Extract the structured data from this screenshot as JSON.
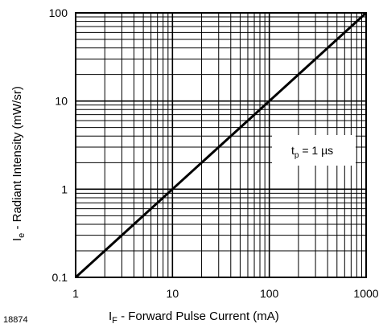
{
  "figure_number": "18874",
  "chart_data": {
    "type": "line",
    "x_scale": "log",
    "y_scale": "log",
    "xlim": [
      1,
      1000
    ],
    "ylim": [
      0.1,
      100
    ],
    "grid": true,
    "x_ticks": [
      "1",
      "10",
      "100",
      "1000"
    ],
    "y_ticks": [
      "0.1",
      "1",
      "10",
      "100"
    ],
    "x_tick_values": [
      1,
      10,
      100,
      1000
    ],
    "y_tick_values": [
      0.1,
      1,
      10,
      100
    ],
    "xlabel": {
      "main": "I",
      "sub": "F",
      "rest": " - Forward Pulse Current (mA)"
    },
    "ylabel": {
      "main": "I",
      "sub": "e",
      "rest": " - Radiant Intensity (mW/sr)"
    },
    "annotation": {
      "main": "t",
      "sub": "p",
      "rest": " = 1 µs"
    },
    "series": [
      {
        "x": [
          1,
          10,
          100,
          1000
        ],
        "y": [
          0.1,
          1,
          10,
          100
        ]
      }
    ]
  }
}
